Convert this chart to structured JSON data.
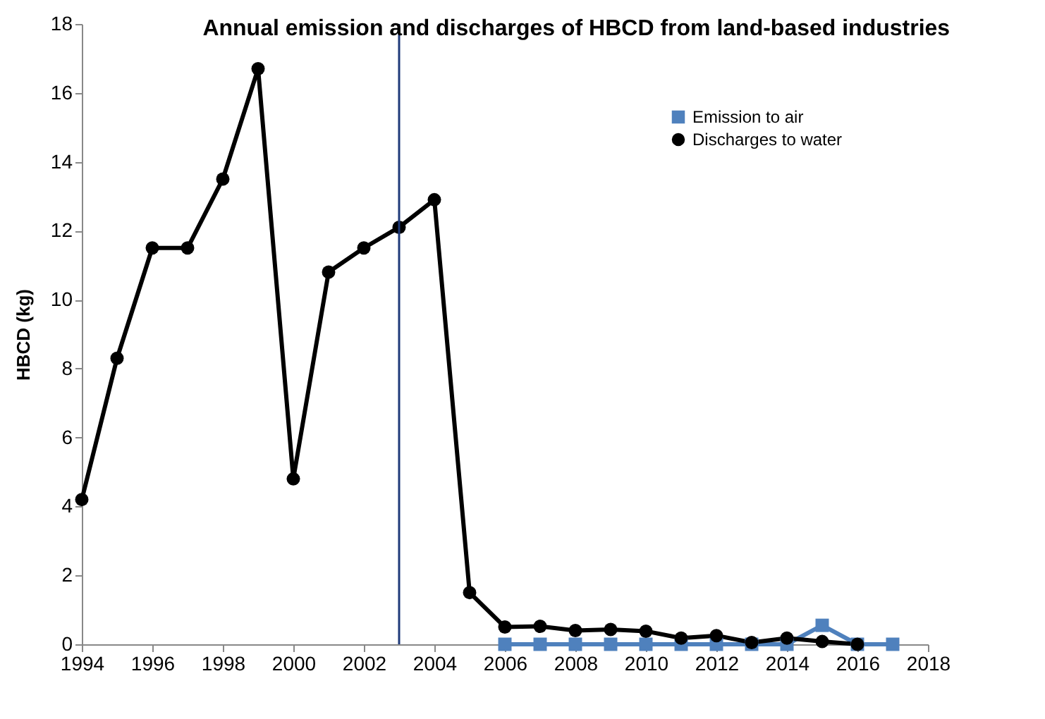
{
  "chart_data": {
    "type": "line",
    "title": "Annual emission and discharges of HBCD from land-based industries",
    "ylabel": "HBCD (kg)",
    "series": [
      {
        "name": "Emission to air",
        "color": "#4f81bd",
        "marker": "square",
        "x": [
          2006,
          2007,
          2008,
          2009,
          2010,
          2011,
          2012,
          2013,
          2014,
          2015,
          2016,
          2017
        ],
        "values": [
          0,
          0,
          0,
          0,
          0,
          0,
          0,
          0,
          0,
          0.55,
          0,
          0
        ]
      },
      {
        "name": "Discharges to water",
        "color": "#000000",
        "marker": "circle",
        "x": [
          1994,
          1995,
          1996,
          1997,
          1998,
          1999,
          2000,
          2001,
          2002,
          2003,
          2004,
          2005,
          2006,
          2007,
          2008,
          2009,
          2010,
          2011,
          2012,
          2013,
          2014,
          2015,
          2016
        ],
        "values": [
          4.2,
          8.3,
          11.5,
          11.5,
          13.5,
          16.7,
          4.8,
          10.8,
          11.5,
          12.1,
          12.9,
          1.5,
          0.5,
          0.52,
          0.4,
          0.43,
          0.38,
          0.18,
          0.25,
          0.05,
          0.18,
          0.08,
          0
        ]
      }
    ],
    "xlim": [
      1994,
      2018
    ],
    "xticks": [
      1994,
      1996,
      1998,
      2000,
      2002,
      2004,
      2006,
      2008,
      2010,
      2012,
      2014,
      2016,
      2018
    ],
    "ylim": [
      0,
      18
    ],
    "yticks": [
      0,
      2,
      4,
      6,
      8,
      10,
      12,
      14,
      16,
      18
    ],
    "ref_lines": [
      {
        "axis": "x",
        "value": 2003,
        "color": "#1f3a7a"
      }
    ],
    "grid": false,
    "legend": "top right"
  }
}
